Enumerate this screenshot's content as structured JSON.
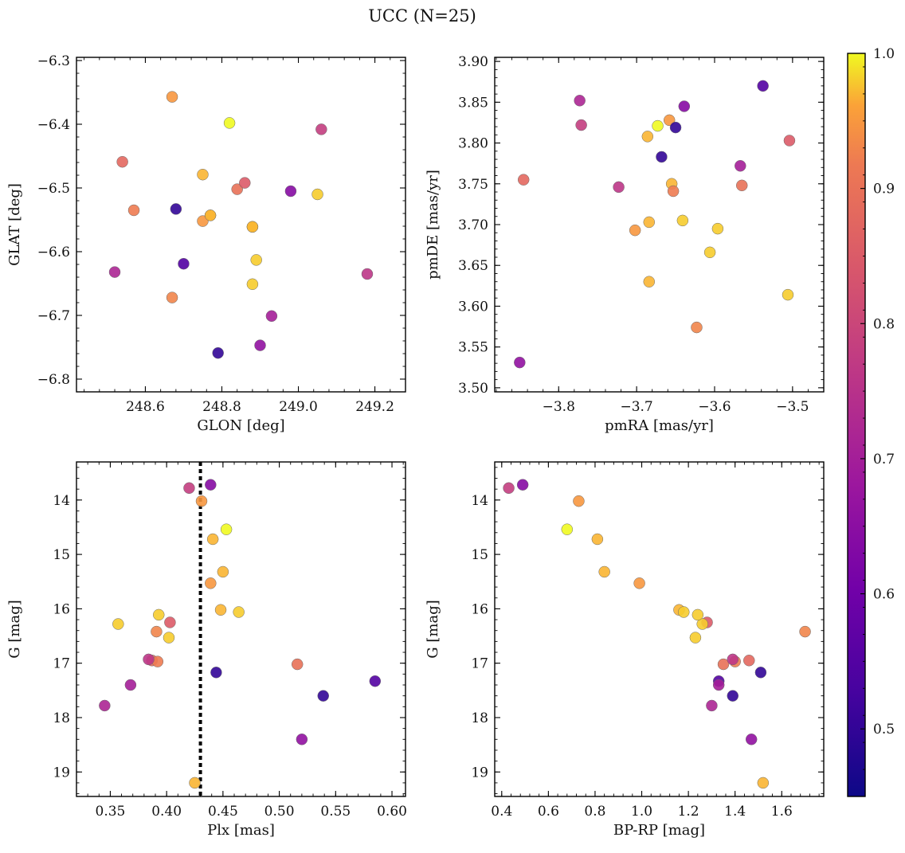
{
  "title": "UCC (N=25)",
  "colorbar": {
    "min": 0.45,
    "max": 1.0,
    "ticks": [
      "0.5",
      "0.6",
      "0.7",
      "0.8",
      "0.9",
      "1.0"
    ],
    "tick_values": [
      0.5,
      0.6,
      0.7,
      0.8,
      0.9,
      1.0
    ],
    "colormap": "plasma"
  },
  "membership": [
    0.95,
    1.0,
    0.78,
    0.88,
    0.9,
    0.97,
    0.85,
    0.92,
    0.5,
    0.97,
    0.95,
    0.97,
    0.98,
    0.64,
    0.72,
    0.98,
    0.55,
    0.98,
    0.93,
    0.76,
    0.98,
    0.7,
    0.66,
    0.5,
    0.97
  ],
  "chart_data": [
    {
      "type": "scatter",
      "xlabel": "GLON [deg]",
      "ylabel": "GLAT [deg]",
      "xlim": [
        248.42,
        249.28
      ],
      "ylim": [
        -6.82,
        -6.295
      ],
      "xticks": [
        248.6,
        248.8,
        249.0,
        249.2
      ],
      "xticklabels": [
        "248.6",
        "248.8",
        "249.0",
        "249.2"
      ],
      "yticks": [
        -6.8,
        -6.7,
        -6.6,
        -6.5,
        -6.4,
        -6.3
      ],
      "yticklabels": [
        "−6.8",
        "−6.7",
        "−6.6",
        "−6.5",
        "−6.4",
        "−6.3"
      ],
      "x": [
        248.67,
        248.82,
        249.06,
        248.54,
        248.84,
        248.75,
        248.86,
        248.57,
        248.68,
        248.77,
        248.75,
        248.77,
        248.88,
        248.98,
        248.52,
        249.05,
        248.7,
        248.89,
        248.67,
        249.18,
        248.88,
        248.93,
        248.9,
        248.79,
        248.88
      ],
      "y": [
        -6.357,
        -6.398,
        -6.408,
        -6.459,
        -6.502,
        -6.479,
        -6.492,
        -6.535,
        -6.533,
        -6.543,
        -6.552,
        -6.543,
        -6.561,
        -6.505,
        -6.632,
        -6.51,
        -6.619,
        -6.613,
        -6.672,
        -6.635,
        -6.651,
        -6.701,
        -6.747,
        -6.759,
        -6.561
      ]
    },
    {
      "type": "scatter",
      "xlabel": "pmRA [mas/yr]",
      "ylabel": "pmDE [mas/yr]",
      "xlim": [
        -3.882,
        -3.46
      ],
      "ylim": [
        3.495,
        3.905
      ],
      "xticks": [
        -3.8,
        -3.7,
        -3.6,
        -3.5
      ],
      "xticklabels": [
        "−3.8",
        "−3.7",
        "−3.6",
        "−3.5"
      ],
      "yticks": [
        3.5,
        3.55,
        3.6,
        3.65,
        3.7,
        3.75,
        3.8,
        3.85,
        3.9
      ],
      "yticklabels": [
        "3.50",
        "3.55",
        "3.60",
        "3.65",
        "3.70",
        "3.75",
        "3.80",
        "3.85",
        "3.90"
      ],
      "x": [
        -3.658,
        -3.673,
        -3.771,
        -3.845,
        -3.565,
        -3.655,
        -3.504,
        -3.653,
        -3.65,
        -3.684,
        -3.702,
        -3.684,
        -3.641,
        -3.639,
        -3.773,
        -3.596,
        -3.538,
        -3.606,
        -3.623,
        -3.723,
        -3.506,
        -3.567,
        -3.85,
        -3.668,
        -3.686
      ],
      "y": [
        3.828,
        3.821,
        3.822,
        3.755,
        3.748,
        3.75,
        3.803,
        3.741,
        3.819,
        3.703,
        3.693,
        3.63,
        3.705,
        3.845,
        3.852,
        3.695,
        3.87,
        3.666,
        3.574,
        3.746,
        3.614,
        3.772,
        3.531,
        3.783,
        3.808
      ]
    },
    {
      "type": "scatter",
      "xlabel": "Plx [mas]",
      "ylabel": "G [mag]",
      "xlim": [
        0.32,
        0.612
      ],
      "ylim": [
        19.45,
        13.3
      ],
      "xticks": [
        0.35,
        0.4,
        0.45,
        0.5,
        0.55,
        0.6
      ],
      "xticklabels": [
        "0.35",
        "0.40",
        "0.45",
        "0.50",
        "0.55",
        "0.60"
      ],
      "yticks": [
        14,
        15,
        16,
        17,
        18,
        19
      ],
      "yticklabels": [
        "14",
        "15",
        "16",
        "17",
        "18",
        "19"
      ],
      "vline": 0.43,
      "x": [
        0.431,
        0.453,
        0.42,
        0.387,
        0.516,
        0.45,
        0.403,
        0.392,
        0.539,
        0.441,
        0.439,
        0.448,
        0.464,
        0.439,
        0.345,
        0.357,
        0.585,
        0.402,
        0.391,
        0.384,
        0.393,
        0.368,
        0.52,
        0.444,
        0.425
      ],
      "y": [
        14.02,
        14.54,
        13.78,
        16.95,
        17.02,
        15.32,
        16.25,
        16.97,
        17.6,
        14.72,
        15.53,
        16.02,
        16.06,
        13.72,
        17.78,
        16.28,
        17.33,
        16.53,
        16.42,
        16.93,
        16.11,
        17.4,
        18.4,
        17.17,
        19.2
      ]
    },
    {
      "type": "scatter",
      "xlabel": "BP-RP [mag]",
      "ylabel": "G [mag]",
      "xlim": [
        0.37,
        1.78
      ],
      "ylim": [
        19.45,
        13.3
      ],
      "xticks": [
        0.4,
        0.6,
        0.8,
        1.0,
        1.2,
        1.4,
        1.6
      ],
      "xticklabels": [
        "0.4",
        "0.6",
        "0.8",
        "1.0",
        "1.2",
        "1.4",
        "1.6"
      ],
      "yticks": [
        14,
        15,
        16,
        17,
        18,
        19
      ],
      "yticklabels": [
        "14",
        "15",
        "16",
        "17",
        "18",
        "19"
      ],
      "x": [
        0.73,
        0.68,
        0.43,
        1.46,
        1.35,
        0.84,
        1.28,
        1.4,
        1.39,
        0.81,
        0.99,
        1.16,
        1.18,
        0.49,
        1.3,
        1.26,
        1.33,
        1.23,
        1.7,
        1.39,
        1.24,
        1.33,
        1.47,
        1.51,
        1.52
      ],
      "y": [
        14.02,
        14.54,
        13.78,
        16.95,
        17.02,
        15.32,
        16.25,
        16.97,
        17.6,
        14.72,
        15.53,
        16.02,
        16.06,
        13.72,
        17.78,
        16.28,
        17.33,
        16.53,
        16.42,
        16.93,
        16.11,
        17.4,
        18.4,
        17.17,
        19.2
      ]
    }
  ]
}
